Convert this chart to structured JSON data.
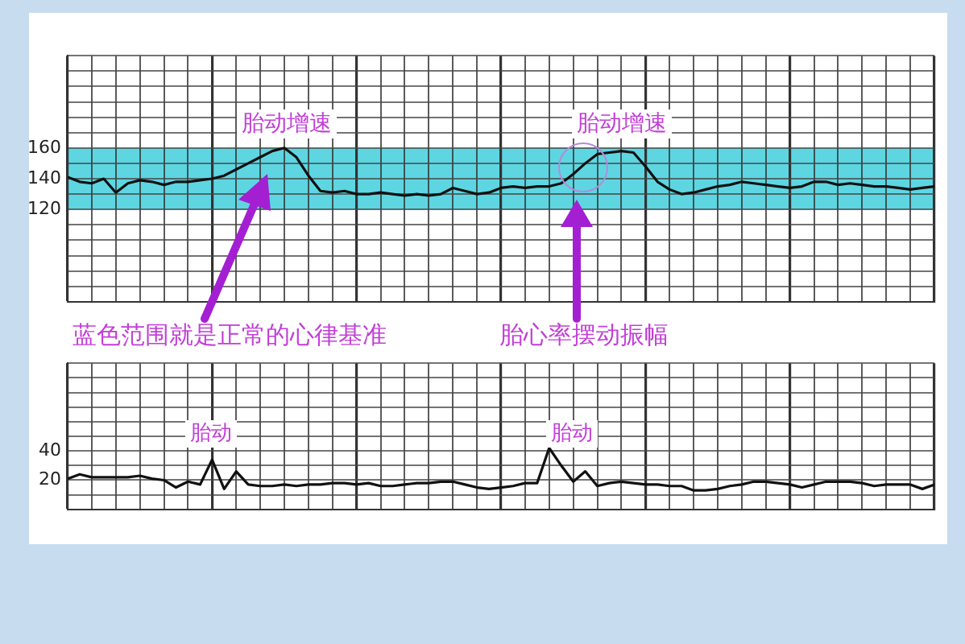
{
  "chart_data": [
    {
      "type": "line",
      "categories": [
        null,
        null,
        null,
        null,
        null,
        null,
        null,
        null,
        null,
        null,
        null,
        null,
        null,
        null,
        null,
        null,
        null,
        null,
        null,
        null,
        null,
        null,
        null,
        null,
        null,
        null,
        null,
        null,
        null,
        null,
        null,
        null,
        null,
        null,
        null,
        null,
        null,
        null,
        null,
        null,
        null,
        null,
        null,
        null,
        null,
        null,
        null,
        null,
        null,
        null,
        null,
        null,
        null,
        null,
        null,
        null,
        null,
        null,
        null,
        null,
        null,
        null,
        null,
        null,
        null,
        null,
        null,
        null,
        null,
        null,
        null,
        null,
        null
      ],
      "series": [
        {
          "color": "#111111",
          "values": [
            141,
            138,
            137,
            140,
            131,
            137,
            139,
            138,
            136,
            138,
            138,
            139,
            140,
            142,
            146,
            150,
            154,
            158,
            160,
            154,
            142,
            132,
            131,
            132,
            130,
            130,
            131,
            130,
            129,
            130,
            129,
            130,
            134,
            132,
            130,
            131,
            134,
            135,
            134,
            135,
            135,
            137,
            143,
            150,
            156,
            157,
            158,
            157,
            148,
            138,
            133,
            130,
            131,
            133,
            135,
            136,
            138,
            137,
            136,
            135,
            134,
            135,
            138,
            138,
            136,
            137,
            136,
            135,
            135,
            134,
            133,
            134,
            135
          ]
        }
      ],
      "ylim": [
        60,
        220
      ],
      "yticks": [
        {
          "value": 60,
          "label": null
        },
        {
          "value": 70,
          "label": null
        },
        {
          "value": 80,
          "label": null
        },
        {
          "value": 90,
          "label": null
        },
        {
          "value": 100,
          "label": null
        },
        {
          "value": 110,
          "label": null
        },
        120,
        {
          "value": 130,
          "label": null
        },
        140,
        {
          "value": 150,
          "label": null
        },
        160,
        {
          "value": 170,
          "label": null
        },
        {
          "value": 180,
          "label": null
        },
        {
          "value": 190,
          "label": null
        },
        {
          "value": 200,
          "label": null
        },
        {
          "value": 210,
          "label": null
        },
        {
          "value": 220,
          "label": null
        }
      ],
      "bands": [
        {
          "axis": "y",
          "from": 120,
          "to": 160,
          "color": "#5ed6e2"
        }
      ],
      "annotations": [
        "胎动增速",
        "胎动增速",
        "蓝色范围就是正常的心律基准",
        "胎心率摆动振幅"
      ],
      "grid": true,
      "legend": false,
      "marker": "none",
      "line_style": "solid",
      "tick_labels": "y"
    },
    {
      "type": "line",
      "categories": [
        null,
        null,
        null,
        null,
        null,
        null,
        null,
        null,
        null,
        null,
        null,
        null,
        null,
        null,
        null,
        null,
        null,
        null,
        null,
        null,
        null,
        null,
        null,
        null,
        null,
        null,
        null,
        null,
        null,
        null,
        null,
        null,
        null,
        null,
        null,
        null,
        null,
        null,
        null,
        null,
        null,
        null,
        null,
        null,
        null,
        null,
        null,
        null,
        null,
        null,
        null,
        null,
        null,
        null,
        null,
        null,
        null,
        null,
        null,
        null,
        null,
        null,
        null,
        null,
        null,
        null,
        null,
        null,
        null,
        null,
        null,
        null,
        null
      ],
      "series": [
        {
          "color": "#111111",
          "values": [
            21,
            24,
            22,
            22,
            22,
            22,
            23,
            21,
            20,
            15,
            19,
            17,
            34,
            14,
            26,
            17,
            16,
            16,
            17,
            16,
            17,
            17,
            18,
            18,
            17,
            18,
            16,
            16,
            17,
            18,
            18,
            19,
            19,
            17,
            15,
            14,
            15,
            16,
            18,
            18,
            42,
            30,
            19,
            26,
            16,
            18,
            19,
            18,
            17,
            17,
            16,
            16,
            13,
            13,
            14,
            16,
            17,
            19,
            19,
            18,
            17,
            15,
            17,
            19,
            19,
            19,
            18,
            16,
            17,
            17,
            17,
            14,
            17
          ]
        }
      ],
      "ylim": [
        0,
        100
      ],
      "yticks": [
        {
          "value": 0,
          "label": null
        },
        {
          "value": 10,
          "label": null
        },
        20,
        {
          "value": 30,
          "label": null
        },
        40,
        {
          "value": 50,
          "label": null
        },
        {
          "value": 60,
          "label": null
        },
        {
          "value": 70,
          "label": null
        },
        {
          "value": 80,
          "label": null
        },
        {
          "value": 90,
          "label": null
        },
        {
          "value": 100,
          "label": null
        }
      ],
      "annotations": [
        "胎动",
        "胎动"
      ],
      "grid": true,
      "legend": false,
      "marker": "none",
      "line_style": "solid",
      "tick_labels": "y"
    }
  ]
}
